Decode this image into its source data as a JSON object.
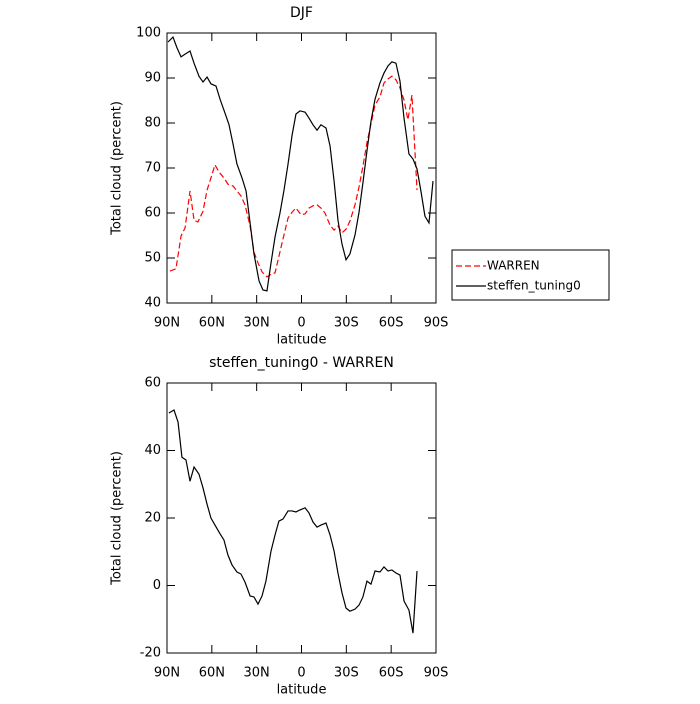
{
  "chart_data": [
    {
      "type": "line",
      "title": "DJF",
      "xlabel": "latitude",
      "ylabel": "Total cloud (percent)",
      "xlim": [
        90,
        -90
      ],
      "xticks": [
        {
          "value": 90,
          "label": "90N"
        },
        {
          "value": 60,
          "label": "60N"
        },
        {
          "value": 30,
          "label": "30N"
        },
        0,
        {
          "value": -30,
          "label": "30S"
        },
        {
          "value": -60,
          "label": "60S"
        },
        {
          "value": -90,
          "label": "90S"
        }
      ],
      "ylim": [
        40,
        100
      ],
      "yticks": [
        40,
        50,
        60,
        70,
        80,
        90,
        100
      ],
      "legend": "right",
      "series": [
        {
          "name": "WARREN",
          "color": "#ff0000",
          "dashed": true,
          "x": [
            88.0,
            84.0,
            80.6,
            77.9,
            74.6,
            71.9,
            69.3,
            65.9,
            63.2,
            60.6,
            57.9,
            55.2,
            51.9,
            49.2,
            45.8,
            43.2,
            40.5,
            37.8,
            34.4,
            31.8,
            29.1,
            26.4,
            23.1,
            20.4,
            17.7,
            15.1,
            12.4,
            9.0,
            6.3,
            3.7,
            0.3,
            -2.4,
            -5.0,
            -7.7,
            -10.4,
            -13.0,
            -15.7,
            -19.1,
            -21.8,
            -24.4,
            -27.1,
            -29.8,
            -32.4,
            -35.8,
            -38.5,
            -41.1,
            -43.8,
            -46.5,
            -49.2,
            -52.5,
            -55.2,
            -57.9,
            -60.5,
            -63.2,
            -65.9,
            -68.6,
            -71.2,
            -73.9,
            -77.3
          ],
          "values": [
            47.1,
            47.6,
            54.9,
            56.7,
            64.9,
            58.4,
            58.0,
            60.4,
            65.1,
            67.8,
            70.7,
            69.1,
            67.8,
            66.4,
            66.0,
            64.9,
            63.8,
            61.8,
            57.1,
            51.3,
            48.9,
            46.9,
            45.8,
            46.4,
            46.7,
            50.4,
            54.2,
            58.9,
            60.2,
            61.1,
            59.6,
            59.8,
            61.1,
            61.6,
            61.8,
            61.1,
            60.0,
            57.3,
            56.2,
            57.1,
            55.6,
            56.4,
            58.2,
            61.8,
            65.8,
            70.4,
            75.6,
            79.8,
            84.0,
            85.8,
            88.9,
            89.8,
            90.4,
            89.6,
            87.8,
            85.1,
            80.7,
            86.2,
            65.1
          ]
        },
        {
          "name": "steffen_tuning0",
          "color": "#000000",
          "dashed": false,
          "x": [
            89.3,
            86.0,
            83.3,
            80.6,
            77.9,
            74.6,
            71.9,
            68.6,
            65.9,
            63.2,
            60.6,
            57.2,
            54.5,
            51.2,
            48.5,
            45.8,
            43.2,
            39.8,
            37.1,
            34.4,
            31.8,
            28.4,
            25.8,
            23.1,
            20.4,
            17.7,
            14.4,
            11.7,
            9.0,
            6.3,
            3.7,
            1.0,
            -2.4,
            -5.0,
            -7.7,
            -10.4,
            -13.0,
            -16.4,
            -19.1,
            -21.8,
            -24.4,
            -27.1,
            -29.8,
            -32.4,
            -35.8,
            -38.5,
            -41.1,
            -43.8,
            -46.5,
            -49.2,
            -52.5,
            -55.2,
            -57.9,
            -60.5,
            -63.2,
            -65.9,
            -68.6,
            -71.9,
            -74.6,
            -77.3,
            -80.0,
            -82.6,
            -85.3,
            -88.0
          ],
          "values": [
            98.0,
            99.1,
            96.7,
            94.7,
            95.3,
            96.0,
            93.3,
            90.4,
            89.1,
            90.2,
            88.7,
            88.2,
            85.3,
            82.2,
            79.6,
            75.3,
            70.9,
            67.8,
            64.9,
            57.8,
            50.9,
            44.9,
            42.9,
            42.7,
            48.9,
            54.7,
            60.0,
            65.1,
            70.9,
            77.3,
            82.0,
            82.7,
            82.4,
            81.1,
            79.6,
            78.4,
            79.6,
            78.9,
            74.9,
            67.1,
            58.4,
            53.1,
            49.6,
            50.9,
            55.1,
            60.2,
            66.7,
            73.8,
            80.4,
            85.3,
            88.9,
            91.1,
            92.7,
            93.6,
            93.3,
            89.3,
            81.1,
            73.1,
            72.0,
            69.8,
            64.7,
            59.3,
            57.8,
            67.1
          ]
        }
      ]
    },
    {
      "type": "line",
      "title": "steffen_tuning0 - WARREN",
      "xlabel": "latitude",
      "ylabel": "Total cloud (percent)",
      "xlim": [
        90,
        -90
      ],
      "xticks": [
        {
          "value": 90,
          "label": "90N"
        },
        {
          "value": 60,
          "label": "60N"
        },
        {
          "value": 30,
          "label": "30N"
        },
        0,
        {
          "value": -30,
          "label": "30S"
        },
        {
          "value": -60,
          "label": "60S"
        },
        {
          "value": -90,
          "label": "90S"
        }
      ],
      "ylim": [
        -20,
        60
      ],
      "yticks": [
        -20,
        0,
        20,
        40,
        60
      ],
      "series": [
        {
          "color": "#000000",
          "dashed": false,
          "x": [
            88.7,
            85.3,
            82.6,
            80.0,
            77.3,
            74.6,
            71.9,
            68.6,
            65.9,
            63.2,
            60.6,
            57.9,
            54.5,
            51.9,
            49.2,
            46.5,
            43.2,
            40.5,
            37.8,
            34.4,
            31.8,
            29.1,
            26.4,
            23.8,
            20.4,
            17.7,
            15.1,
            12.4,
            9.0,
            6.3,
            3.7,
            1.0,
            -2.4,
            -5.0,
            -7.7,
            -10.4,
            -13.0,
            -16.4,
            -19.1,
            -21.8,
            -24.4,
            -27.1,
            -29.8,
            -32.4,
            -35.8,
            -38.5,
            -41.1,
            -43.8,
            -46.5,
            -49.2,
            -52.5,
            -55.2,
            -57.9,
            -60.5,
            -63.2,
            -65.9,
            -68.6,
            -71.9,
            -74.6,
            -77.3
          ],
          "values": [
            51.1,
            52.0,
            48.4,
            38.0,
            37.2,
            30.9,
            35.1,
            33.0,
            28.9,
            24.1,
            20.0,
            17.9,
            15.3,
            13.5,
            9.0,
            6.1,
            4.0,
            3.4,
            1.0,
            -3.1,
            -3.4,
            -5.5,
            -3.1,
            1.3,
            10.2,
            15.0,
            19.1,
            19.7,
            22.1,
            22.1,
            21.8,
            22.4,
            23.0,
            21.5,
            18.8,
            17.3,
            17.9,
            18.5,
            15.0,
            10.2,
            3.7,
            -2.2,
            -6.7,
            -7.6,
            -7.0,
            -5.8,
            -3.4,
            1.3,
            0.4,
            4.3,
            4.0,
            5.5,
            4.3,
            4.6,
            3.7,
            3.1,
            -4.6,
            -7.3,
            -14.1,
            4.3
          ]
        }
      ]
    }
  ]
}
